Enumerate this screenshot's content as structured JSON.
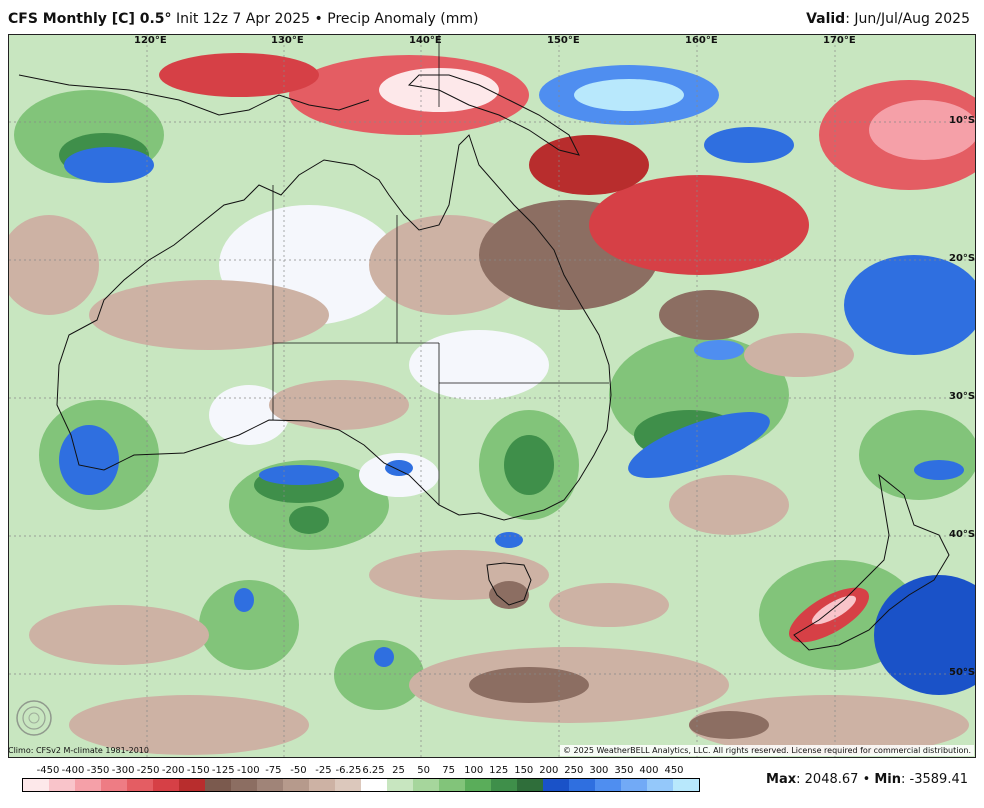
{
  "header": {
    "model": "CFS Monthly [C] 0.5",
    "degree": "°",
    "init": "Init 12z 7 Apr 2025",
    "bullet": "•",
    "field": "Precip Anomaly (mm)",
    "valid_label": "Valid",
    "valid_value": ": Jun/Jul/Aug 2025"
  },
  "map": {
    "lon_labels": [
      "120°E",
      "130°E",
      "140°E",
      "150°E",
      "160°E",
      "170°E"
    ],
    "lat_labels": [
      "10°S",
      "20°S",
      "30°S",
      "40°S",
      "50°S"
    ]
  },
  "footer": {
    "climo": "Climo: CFSv2 M-climate 1981-2010",
    "copyright": "© 2025 WeatherBELL Analytics, LLC. All rights reserved. License required for commercial distribution.",
    "logo_text": "WeatherBELL",
    "max_label": "Max",
    "max_value": ": 2048.67",
    "bullet": "•",
    "min_label": "Min",
    "min_value": ": -3589.41"
  },
  "colorbar": {
    "ticks": [
      "-450",
      "-400",
      "-350",
      "-300",
      "-250",
      "-200",
      "-150",
      "-125",
      "-100",
      "-75",
      "-50",
      "-25",
      "-6.25",
      "6.25",
      "25",
      "50",
      "75",
      "100",
      "125",
      "150",
      "200",
      "250",
      "300",
      "350",
      "400",
      "450"
    ],
    "colors": [
      "#fde8ea",
      "#f9c4ca",
      "#f5a0a8",
      "#ee7c84",
      "#e45d63",
      "#d64046",
      "#b82d2d",
      "#7b5a4e",
      "#8c6e62",
      "#a08478",
      "#b69a8c",
      "#cdb2a4",
      "#dcc8bc",
      "#ffffff",
      "#c8e6c0",
      "#a6d69c",
      "#82c47a",
      "#5aad5a",
      "#3f8f4a",
      "#2f6e3a",
      "#1a52c8",
      "#2f6fe0",
      "#4f8ef0",
      "#72aaf6",
      "#94c8fa",
      "#b8e8fc"
    ]
  }
}
